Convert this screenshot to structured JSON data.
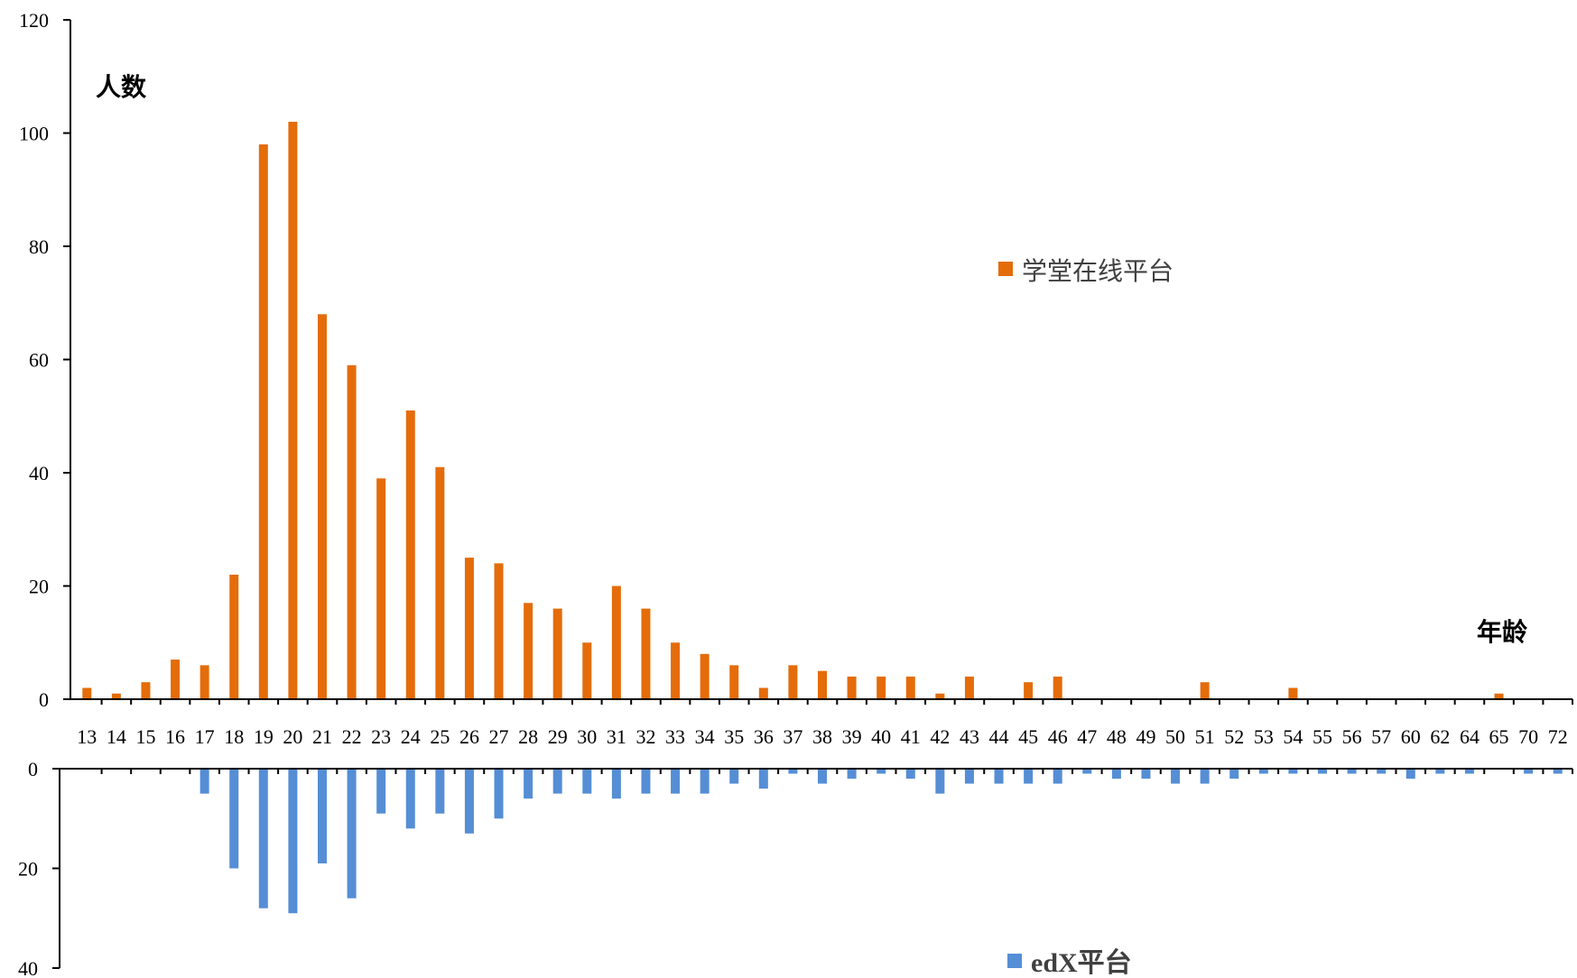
{
  "chart_data": {
    "type": "bar",
    "xlabel": "年龄",
    "ylabel": "人数",
    "categories": [
      "13",
      "14",
      "15",
      "16",
      "17",
      "18",
      "19",
      "20",
      "21",
      "22",
      "23",
      "24",
      "25",
      "26",
      "27",
      "28",
      "29",
      "30",
      "31",
      "32",
      "33",
      "34",
      "35",
      "36",
      "37",
      "38",
      "39",
      "40",
      "41",
      "42",
      "43",
      "44",
      "45",
      "46",
      "47",
      "48",
      "49",
      "50",
      "51",
      "52",
      "53",
      "54",
      "55",
      "56",
      "57",
      "60",
      "62",
      "64",
      "65",
      "70",
      "72"
    ],
    "series": [
      {
        "name": "学堂在线平台",
        "color": "#E46C0A",
        "values": [
          2,
          1,
          3,
          7,
          6,
          22,
          98,
          102,
          68,
          59,
          39,
          51,
          41,
          25,
          24,
          17,
          16,
          10,
          20,
          16,
          10,
          8,
          6,
          2,
          6,
          5,
          4,
          4,
          4,
          1,
          4,
          0,
          3,
          4,
          0,
          0,
          0,
          0,
          3,
          0,
          0,
          2,
          0,
          0,
          0,
          0,
          0,
          0,
          1,
          0,
          0
        ],
        "ylim": [
          0,
          120
        ],
        "yticks": [
          0,
          20,
          40,
          60,
          80,
          100,
          120
        ]
      },
      {
        "name": "edX平台",
        "color": "#558ED5",
        "values": [
          0,
          0,
          0,
          0,
          5,
          20,
          28,
          29,
          19,
          26,
          9,
          12,
          9,
          13,
          10,
          6,
          5,
          5,
          6,
          5,
          5,
          5,
          3,
          4,
          1,
          3,
          2,
          1,
          2,
          5,
          3,
          3,
          3,
          3,
          1,
          2,
          2,
          3,
          3,
          2,
          1,
          1,
          1,
          1,
          1,
          2,
          1,
          1,
          0,
          1,
          1
        ],
        "ylim": [
          0,
          40
        ],
        "yticks": [
          0,
          20,
          40
        ]
      }
    ]
  }
}
